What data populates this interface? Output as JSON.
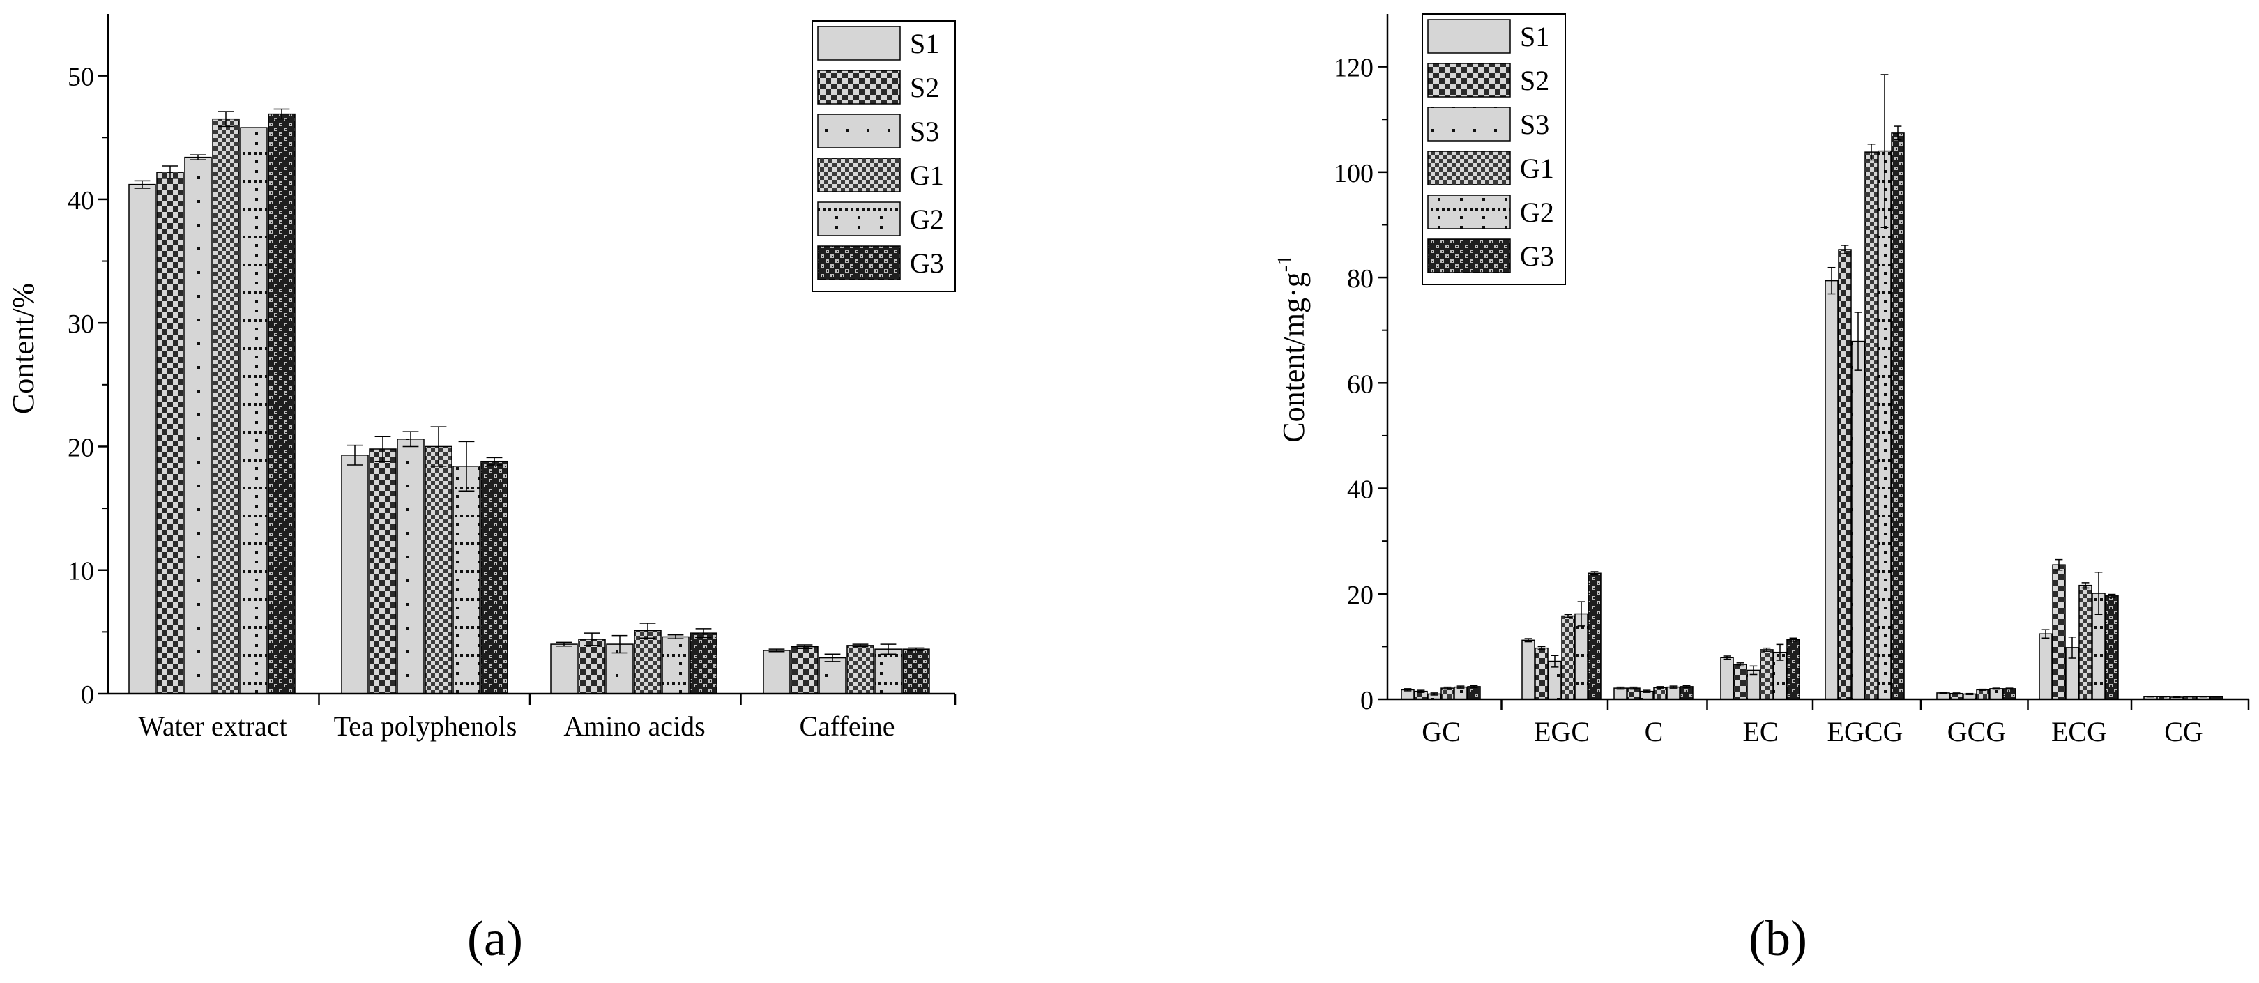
{
  "chart_data": [
    {
      "id": "a",
      "type": "bar",
      "panel_label": "(a)",
      "ylabel": "Content/%",
      "ylim": [
        0,
        55
      ],
      "yticks": [
        "0",
        "10",
        "20",
        "30",
        "40",
        "50"
      ],
      "categories": [
        "Water extract",
        "Tea polyphenols",
        "Amino acids",
        "Caffeine"
      ],
      "legend_position": "top-right",
      "series": [
        {
          "name": "S1",
          "pattern": "solid",
          "values": [
            41.2,
            19.3,
            4.0,
            3.5
          ],
          "errors": [
            0.3,
            0.8,
            0.15,
            0.1
          ]
        },
        {
          "name": "S2",
          "pattern": "checker",
          "values": [
            42.2,
            19.8,
            4.4,
            3.8
          ],
          "errors": [
            0.5,
            1.0,
            0.5,
            0.15
          ]
        },
        {
          "name": "S3",
          "pattern": "sparse-dots",
          "values": [
            43.4,
            20.6,
            4.0,
            2.9
          ],
          "errors": [
            0.2,
            0.6,
            0.7,
            0.3
          ]
        },
        {
          "name": "G1",
          "pattern": "fine-check",
          "values": [
            46.5,
            20.0,
            5.1,
            3.9
          ],
          "errors": [
            0.6,
            1.6,
            0.6,
            0.1
          ]
        },
        {
          "name": "G2",
          "pattern": "grid-dots",
          "values": [
            45.8,
            18.4,
            4.6,
            3.6
          ],
          "errors": [
            0.0,
            2.0,
            0.15,
            0.4
          ]
        },
        {
          "name": "G3",
          "pattern": "dark-check",
          "values": [
            46.9,
            18.8,
            4.9,
            3.6
          ],
          "errors": [
            0.4,
            0.3,
            0.35,
            0.1
          ]
        }
      ]
    },
    {
      "id": "b",
      "type": "bar",
      "panel_label": "(b)",
      "ylabel": "Content/mg·g",
      "ylabel_sup": "-1",
      "ylim": [
        0,
        130
      ],
      "yticks": [
        "0",
        "20",
        "40",
        "60",
        "80",
        "100",
        "120"
      ],
      "categories": [
        "GC",
        "EGC",
        "C",
        "EC",
        "EGCG",
        "GCG",
        "ECG",
        "CG"
      ],
      "legend_position": "top-left",
      "series": [
        {
          "name": "S1",
          "pattern": "solid",
          "values": [
            1.8,
            11.2,
            2.1,
            7.9,
            79.4,
            1.2,
            12.4,
            0.5
          ],
          "errors": [
            0.2,
            0.3,
            0.2,
            0.3,
            2.5,
            0.1,
            0.8,
            0.05
          ]
        },
        {
          "name": "S2",
          "pattern": "checker",
          "values": [
            1.5,
            9.7,
            2.1,
            6.6,
            85.3,
            1.1,
            25.5,
            0.5
          ],
          "errors": [
            0.2,
            0.3,
            0.2,
            0.3,
            0.8,
            0.1,
            1.0,
            0.05
          ]
        },
        {
          "name": "S3",
          "pattern": "sparse-dots",
          "values": [
            1.0,
            7.2,
            1.5,
            5.5,
            67.9,
            1.0,
            9.8,
            0.4
          ],
          "errors": [
            0.2,
            1.1,
            0.2,
            0.8,
            5.5,
            0.1,
            2.0,
            0.05
          ]
        },
        {
          "name": "G1",
          "pattern": "fine-check",
          "values": [
            2.1,
            15.8,
            2.2,
            9.4,
            103.8,
            1.8,
            21.6,
            0.5
          ],
          "errors": [
            0.2,
            0.3,
            0.2,
            0.3,
            1.5,
            0.1,
            0.5,
            0.05
          ]
        },
        {
          "name": "G2",
          "pattern": "grid-dots",
          "values": [
            2.3,
            16.2,
            2.3,
            8.9,
            104.0,
            2.0,
            20.1,
            0.5
          ],
          "errors": [
            0.2,
            2.3,
            0.2,
            1.5,
            14.5,
            0.1,
            4.0,
            0.05
          ]
        },
        {
          "name": "G3",
          "pattern": "dark-check",
          "values": [
            2.4,
            23.9,
            2.4,
            11.3,
            107.4,
            2.0,
            19.6,
            0.5
          ],
          "errors": [
            0.2,
            0.3,
            0.2,
            0.3,
            1.3,
            0.1,
            0.3,
            0.05
          ]
        }
      ]
    }
  ],
  "colors": {
    "bar_fill": "#d6d6d6",
    "pattern_dark": "#1a1a1a",
    "axis": "#000000",
    "background": "#ffffff"
  }
}
